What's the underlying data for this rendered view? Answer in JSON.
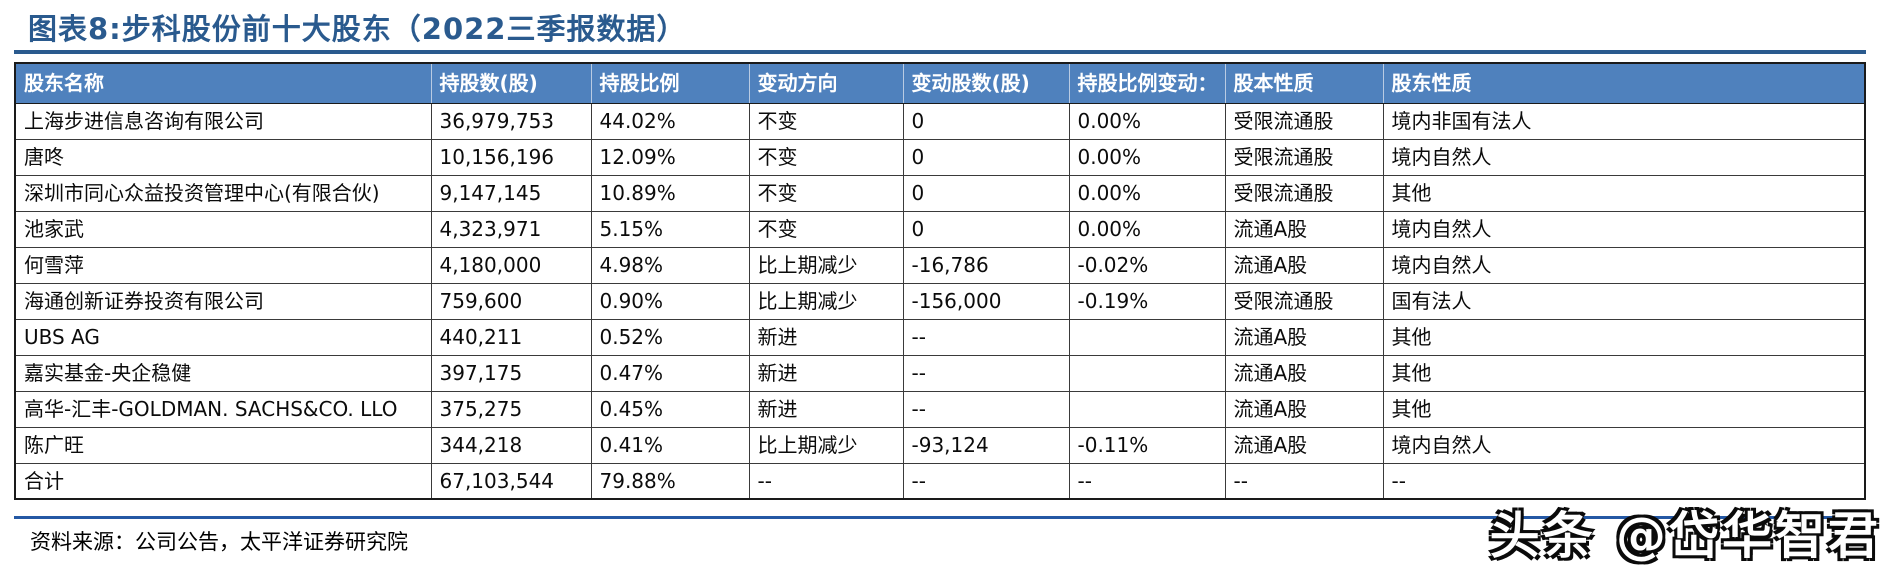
{
  "title": "图表8:步科股份前十大股东（2022三季报数据）",
  "source": "资料来源：公司公告，太平洋证券研究院",
  "watermark": "头条 @岱华智君",
  "colors": {
    "accent": "#2A5A8E",
    "bottom_rule": "#2458A4",
    "header_bg": "#4F81BD",
    "header_text": "#FFFFFF"
  },
  "table": {
    "columns": [
      "股东名称",
      "持股数(股)",
      "持股比例",
      "变动方向",
      "变动股数(股)",
      "持股比例变动：",
      "股本性质",
      "股东性质"
    ],
    "rows": [
      [
        "上海步进信息咨询有限公司",
        "36,979,753",
        "44.02%",
        "不变",
        "0",
        "0.00%",
        "受限流通股",
        "境内非国有法人"
      ],
      [
        "唐咚",
        "10,156,196",
        "12.09%",
        "不变",
        "0",
        "0.00%",
        "受限流通股",
        "境内自然人"
      ],
      [
        "深圳市同心众益投资管理中心(有限合伙)",
        "9,147,145",
        "10.89%",
        "不变",
        "0",
        "0.00%",
        "受限流通股",
        "其他"
      ],
      [
        "池家武",
        "4,323,971",
        "5.15%",
        "不变",
        "0",
        "0.00%",
        "流通A股",
        "境内自然人"
      ],
      [
        "何雪萍",
        "4,180,000",
        "4.98%",
        "比上期减少",
        "-16,786",
        "-0.02%",
        "流通A股",
        "境内自然人"
      ],
      [
        "海通创新证券投资有限公司",
        "759,600",
        "0.90%",
        "比上期减少",
        "-156,000",
        "-0.19%",
        "受限流通股",
        "国有法人"
      ],
      [
        "UBS AG",
        "440,211",
        "0.52%",
        "新进",
        "--",
        "",
        "流通A股",
        "其他"
      ],
      [
        "嘉实基金-央企稳健",
        "397,175",
        "0.47%",
        "新进",
        "--",
        "",
        "流通A股",
        "其他"
      ],
      [
        "高华-汇丰-GOLDMAN. SACHS&CO. LLO",
        "375,275",
        "0.45%",
        "新进",
        "--",
        "",
        "流通A股",
        "其他"
      ],
      [
        "陈广旺",
        "344,218",
        "0.41%",
        "比上期减少",
        "-93,124",
        "-0.11%",
        "流通A股",
        "境内自然人"
      ],
      [
        "合计",
        "67,103,544",
        "79.88%",
        "--",
        "--",
        "--",
        "--",
        "--"
      ]
    ]
  }
}
